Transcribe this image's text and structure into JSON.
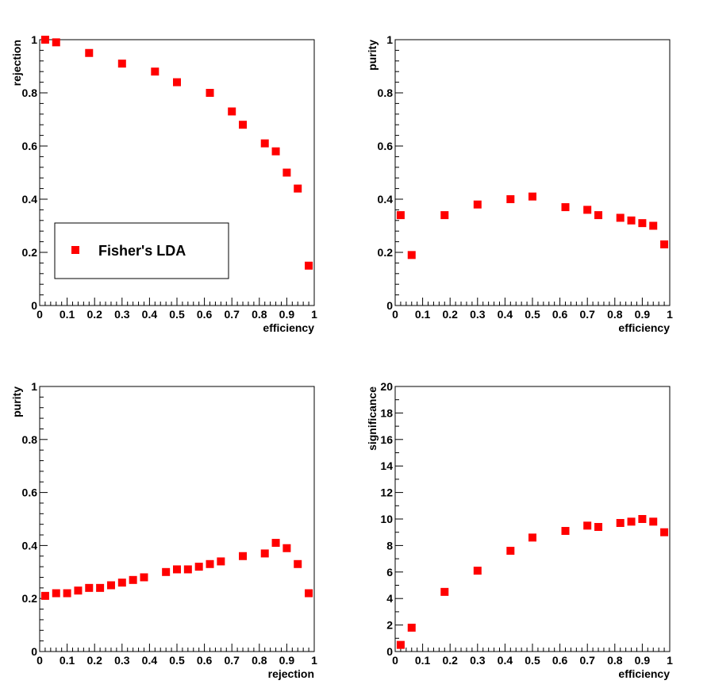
{
  "colors": {
    "marker": "#ff0000",
    "frame": "#000000",
    "background": "#ffffff"
  },
  "legend": {
    "label": "Fisher's LDA"
  },
  "chart_data": [
    {
      "type": "scatter",
      "xlabel": "efficiency",
      "ylabel": "rejection",
      "xlim": [
        0,
        1
      ],
      "ylim": [
        0,
        1
      ],
      "xticks": [
        "0",
        "0.1",
        "0.2",
        "0.3",
        "0.4",
        "0.5",
        "0.6",
        "0.7",
        "0.8",
        "0.9",
        "1"
      ],
      "yticks": [
        "0",
        "0.2",
        "0.4",
        "0.6",
        "0.8",
        "1"
      ],
      "legend": "bottom-left",
      "series": [
        {
          "name": "Fisher's LDA",
          "x": [
            0.02,
            0.06,
            0.18,
            0.3,
            0.42,
            0.5,
            0.62,
            0.7,
            0.74,
            0.82,
            0.86,
            0.9,
            0.94,
            0.98
          ],
          "y": [
            1.0,
            0.99,
            0.95,
            0.91,
            0.88,
            0.84,
            0.8,
            0.73,
            0.68,
            0.61,
            0.58,
            0.5,
            0.44,
            0.15
          ]
        }
      ]
    },
    {
      "type": "scatter",
      "xlabel": "efficiency",
      "ylabel": "purity",
      "xlim": [
        0,
        1
      ],
      "ylim": [
        0,
        1
      ],
      "xticks": [
        "0",
        "0.1",
        "0.2",
        "0.3",
        "0.4",
        "0.5",
        "0.6",
        "0.7",
        "0.8",
        "0.9",
        "1"
      ],
      "yticks": [
        "0",
        "0.2",
        "0.4",
        "0.6",
        "0.8",
        "1"
      ],
      "series": [
        {
          "name": "Fisher's LDA",
          "x": [
            0.02,
            0.06,
            0.18,
            0.3,
            0.42,
            0.5,
            0.62,
            0.7,
            0.74,
            0.82,
            0.86,
            0.9,
            0.94,
            0.98
          ],
          "y": [
            0.34,
            0.19,
            0.34,
            0.38,
            0.4,
            0.41,
            0.37,
            0.36,
            0.34,
            0.33,
            0.32,
            0.31,
            0.3,
            0.23
          ]
        }
      ]
    },
    {
      "type": "scatter",
      "xlabel": "rejection",
      "ylabel": "purity",
      "xlim": [
        0,
        1
      ],
      "ylim": [
        0,
        1
      ],
      "xticks": [
        "0",
        "0.1",
        "0.2",
        "0.3",
        "0.4",
        "0.5",
        "0.6",
        "0.7",
        "0.8",
        "0.9",
        "1"
      ],
      "yticks": [
        "0",
        "0.2",
        "0.4",
        "0.6",
        "0.8",
        "1"
      ],
      "series": [
        {
          "name": "Fisher's LDA",
          "x": [
            0.02,
            0.06,
            0.1,
            0.14,
            0.18,
            0.22,
            0.26,
            0.3,
            0.34,
            0.38,
            0.46,
            0.5,
            0.54,
            0.58,
            0.62,
            0.66,
            0.74,
            0.82,
            0.86,
            0.9,
            0.94,
            0.98
          ],
          "y": [
            0.21,
            0.22,
            0.22,
            0.23,
            0.24,
            0.24,
            0.25,
            0.26,
            0.27,
            0.28,
            0.3,
            0.31,
            0.31,
            0.32,
            0.33,
            0.34,
            0.36,
            0.37,
            0.41,
            0.39,
            0.33,
            0.22
          ]
        }
      ]
    },
    {
      "type": "scatter",
      "xlabel": "efficiency",
      "ylabel": "significance",
      "xlim": [
        0,
        1
      ],
      "ylim": [
        0,
        20
      ],
      "xticks": [
        "0",
        "0.1",
        "0.2",
        "0.3",
        "0.4",
        "0.5",
        "0.6",
        "0.7",
        "0.8",
        "0.9",
        "1"
      ],
      "yticks": [
        "0",
        "2",
        "4",
        "6",
        "8",
        "10",
        "12",
        "14",
        "16",
        "18",
        "20"
      ],
      "series": [
        {
          "name": "Fisher's LDA",
          "x": [
            0.02,
            0.06,
            0.18,
            0.3,
            0.42,
            0.5,
            0.62,
            0.7,
            0.74,
            0.82,
            0.86,
            0.9,
            0.94,
            0.98
          ],
          "y": [
            0.5,
            1.8,
            4.5,
            6.1,
            7.6,
            8.6,
            9.1,
            9.5,
            9.4,
            9.7,
            9.8,
            10.0,
            9.8,
            9.0
          ]
        }
      ]
    }
  ]
}
